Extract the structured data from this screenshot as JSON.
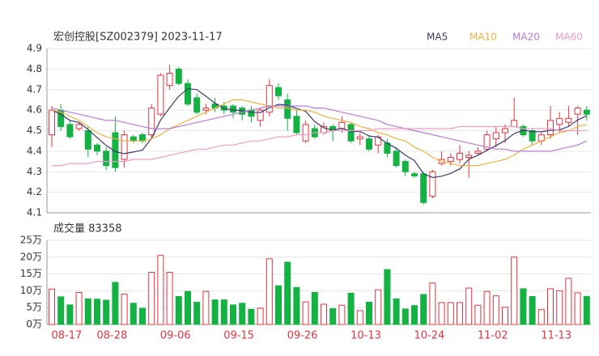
{
  "chart_data": [
    {
      "type": "candlestick",
      "title": "宏创控股[SZ002379] 2023-11-17",
      "open": [
        4.48,
        4.6,
        4.53,
        4.51,
        4.5,
        4.43,
        4.4,
        4.49,
        4.36,
        4.47,
        4.48,
        4.48,
        4.58,
        4.72,
        4.8,
        4.73,
        4.66,
        4.6,
        4.63,
        4.62,
        4.62,
        4.61,
        4.6,
        4.55,
        4.59,
        4.71,
        4.65,
        4.57,
        4.45,
        4.51,
        4.49,
        4.52,
        4.51,
        4.53,
        4.46,
        4.46,
        4.43,
        4.44,
        4.4,
        4.35,
        4.29,
        4.29,
        4.18,
        4.34,
        4.35,
        4.36,
        4.37,
        4.39,
        4.41,
        4.46,
        4.49,
        4.52,
        4.52,
        4.5,
        4.45,
        4.48,
        4.53,
        4.54,
        4.58,
        4.6
      ],
      "high": [
        4.62,
        4.63,
        4.55,
        4.54,
        4.52,
        4.44,
        4.42,
        4.57,
        4.5,
        4.48,
        4.49,
        4.63,
        4.78,
        4.82,
        4.81,
        4.75,
        4.68,
        4.63,
        4.66,
        4.64,
        4.63,
        4.62,
        4.62,
        4.61,
        4.75,
        4.73,
        4.68,
        4.6,
        4.55,
        4.53,
        4.54,
        4.53,
        4.57,
        4.54,
        4.49,
        4.48,
        4.48,
        4.46,
        4.42,
        4.36,
        4.3,
        4.3,
        4.31,
        4.4,
        4.39,
        4.43,
        4.4,
        4.42,
        4.5,
        4.52,
        4.53,
        4.66,
        4.53,
        4.51,
        4.49,
        4.62,
        4.59,
        4.62,
        4.62,
        4.62
      ],
      "low": [
        4.42,
        4.5,
        4.46,
        4.5,
        4.37,
        4.38,
        4.31,
        4.3,
        4.32,
        4.44,
        4.44,
        4.46,
        4.57,
        4.7,
        4.72,
        4.62,
        4.58,
        4.58,
        4.59,
        4.58,
        4.56,
        4.55,
        4.54,
        4.52,
        4.57,
        4.65,
        4.5,
        4.48,
        4.44,
        4.46,
        4.48,
        4.45,
        4.49,
        4.44,
        4.43,
        4.4,
        4.39,
        4.37,
        4.32,
        4.28,
        4.27,
        4.14,
        4.17,
        4.33,
        4.33,
        4.34,
        4.27,
        4.38,
        4.4,
        4.42,
        4.44,
        4.52,
        4.47,
        4.43,
        4.43,
        4.46,
        4.49,
        4.52,
        4.48,
        4.55
      ],
      "close": [
        4.6,
        4.52,
        4.47,
        4.53,
        4.41,
        4.4,
        4.33,
        4.32,
        4.48,
        4.45,
        4.45,
        4.61,
        4.77,
        4.78,
        4.73,
        4.63,
        4.59,
        4.61,
        4.61,
        4.6,
        4.59,
        4.58,
        4.57,
        4.6,
        4.72,
        4.67,
        4.56,
        4.49,
        4.53,
        4.47,
        4.52,
        4.5,
        4.54,
        4.45,
        4.47,
        4.41,
        4.47,
        4.39,
        4.33,
        4.3,
        4.28,
        4.15,
        4.3,
        4.36,
        4.37,
        4.39,
        4.38,
        4.4,
        4.48,
        4.49,
        4.51,
        4.55,
        4.48,
        4.45,
        4.48,
        4.55,
        4.56,
        4.56,
        4.61,
        4.58
      ],
      "up_color": "#e8333f",
      "down_color": "#14b143",
      "series": [
        {
          "name": "MA5",
          "color": "#3b3b6d",
          "values": [
            4.6,
            4.58,
            4.55,
            4.54,
            4.506,
            4.466,
            4.428,
            4.398,
            4.388,
            4.396,
            4.406,
            4.462,
            4.552,
            4.612,
            4.668,
            4.704,
            4.7,
            4.668,
            4.634,
            4.608,
            4.6,
            4.598,
            4.59,
            4.588,
            4.612,
            4.628,
            4.624,
            4.608,
            4.594,
            4.544,
            4.514,
            4.502,
            4.512,
            4.496,
            4.496,
            4.474,
            4.468,
            4.438,
            4.414,
            4.38,
            4.354,
            4.29,
            4.272,
            4.278,
            4.292,
            4.314,
            4.36,
            4.38,
            4.404,
            4.428,
            4.452,
            4.486,
            4.502,
            4.496,
            4.494,
            4.502,
            4.504,
            4.52,
            4.552,
            4.572
          ]
        },
        {
          "name": "MA10",
          "color": "#f0b23e",
          "values": [
            4.6,
            4.59,
            4.57,
            4.55,
            4.52,
            4.49,
            4.47,
            4.46,
            4.45,
            4.45,
            4.45,
            4.46,
            4.48,
            4.51,
            4.53,
            4.55,
            4.57,
            4.59,
            4.61,
            4.63,
            4.65,
            4.65,
            4.64,
            4.63,
            4.62,
            4.61,
            4.61,
            4.6,
            4.6,
            4.59,
            4.57,
            4.56,
            4.55,
            4.54,
            4.52,
            4.51,
            4.49,
            4.48,
            4.46,
            4.45,
            4.42,
            4.4,
            4.37,
            4.35,
            4.34,
            4.33,
            4.33,
            4.33,
            4.34,
            4.35,
            4.36,
            4.38,
            4.41,
            4.43,
            4.45,
            4.47,
            4.49,
            4.5,
            4.52,
            4.53
          ]
        },
        {
          "name": "MA20",
          "color": "#b77ad6",
          "values": [
            4.61,
            4.6,
            4.59,
            4.58,
            4.57,
            4.56,
            4.55,
            4.55,
            4.54,
            4.53,
            4.52,
            4.51,
            4.51,
            4.51,
            4.52,
            4.53,
            4.54,
            4.55,
            4.56,
            4.57,
            4.58,
            4.59,
            4.6,
            4.61,
            4.62,
            4.62,
            4.62,
            4.62,
            4.62,
            4.61,
            4.61,
            4.6,
            4.59,
            4.58,
            4.57,
            4.56,
            4.55,
            4.53,
            4.52,
            4.51,
            4.5,
            4.49,
            4.48,
            4.47,
            4.46,
            4.45,
            4.44,
            4.43,
            4.42,
            4.41,
            4.41,
            4.4,
            4.4,
            4.4,
            4.4,
            4.4,
            4.41,
            4.42,
            4.43,
            4.45
          ]
        },
        {
          "name": "MA60",
          "color": "#f29ac8",
          "values": [
            4.33,
            4.33,
            4.34,
            4.34,
            4.34,
            4.35,
            4.35,
            4.35,
            4.35,
            4.36,
            4.36,
            4.36,
            4.37,
            4.38,
            4.39,
            4.4,
            4.41,
            4.41,
            4.42,
            4.43,
            4.43,
            4.44,
            4.45,
            4.45,
            4.46,
            4.47,
            4.47,
            4.48,
            4.48,
            4.49,
            4.49,
            4.5,
            4.5,
            4.5,
            4.5,
            4.5,
            4.51,
            4.51,
            4.51,
            4.51,
            4.51,
            4.51,
            4.51,
            4.51,
            4.51,
            4.52,
            4.52,
            4.52,
            4.52,
            4.52,
            4.52,
            4.52,
            4.51,
            4.51,
            4.51,
            4.51,
            4.5,
            4.5,
            4.5,
            4.5
          ]
        }
      ],
      "ylim": [
        4.1,
        4.9
      ],
      "yticks": [
        4.1,
        4.2,
        4.3,
        4.4,
        4.5,
        4.6,
        4.7,
        4.8,
        4.9
      ],
      "grid": true
    },
    {
      "type": "bar",
      "title": "成交量 83358",
      "categories": [
        null,
        null,
        "08-17",
        null,
        null,
        null,
        null,
        "08-28",
        null,
        null,
        null,
        null,
        null,
        null,
        "09-06",
        null,
        null,
        null,
        null,
        null,
        null,
        "09-15",
        null,
        null,
        null,
        null,
        null,
        null,
        "09-26",
        null,
        null,
        null,
        null,
        null,
        null,
        "10-13",
        null,
        null,
        null,
        null,
        null,
        null,
        "10-24",
        null,
        null,
        null,
        null,
        null,
        null,
        "11-02",
        null,
        null,
        null,
        null,
        null,
        null,
        "11-13",
        null,
        null,
        null
      ],
      "values": [
        10.5,
        8.2,
        5.8,
        9.5,
        7.6,
        7.5,
        7.2,
        12.5,
        9.0,
        6.3,
        4.8,
        15.5,
        20.5,
        15.5,
        8.3,
        9.8,
        6.6,
        9.8,
        7.3,
        7.3,
        5.8,
        6.3,
        4.5,
        4.8,
        19.5,
        11.5,
        18.5,
        11.0,
        6.7,
        9.5,
        6.0,
        4.7,
        5.7,
        9.3,
        4.1,
        6.6,
        10.3,
        16.3,
        7.6,
        4.6,
        5.6,
        8.9,
        12.3,
        6.5,
        6.5,
        6.5,
        10.8,
        5.7,
        9.8,
        8.5,
        5.1,
        20.0,
        10.6,
        8.3,
        4.4,
        10.6,
        10.0,
        13.7,
        9.4,
        8.3358
      ],
      "ylim": [
        0,
        25
      ],
      "yticks": [
        {
          "value": 0,
          "label": "0万"
        },
        {
          "value": 5,
          "label": "5万"
        },
        {
          "value": 10,
          "label": "10万"
        },
        {
          "value": 15,
          "label": "15万"
        },
        {
          "value": 20,
          "label": "20万"
        },
        {
          "value": 25,
          "label": "25万"
        }
      ],
      "grid": true
    }
  ]
}
